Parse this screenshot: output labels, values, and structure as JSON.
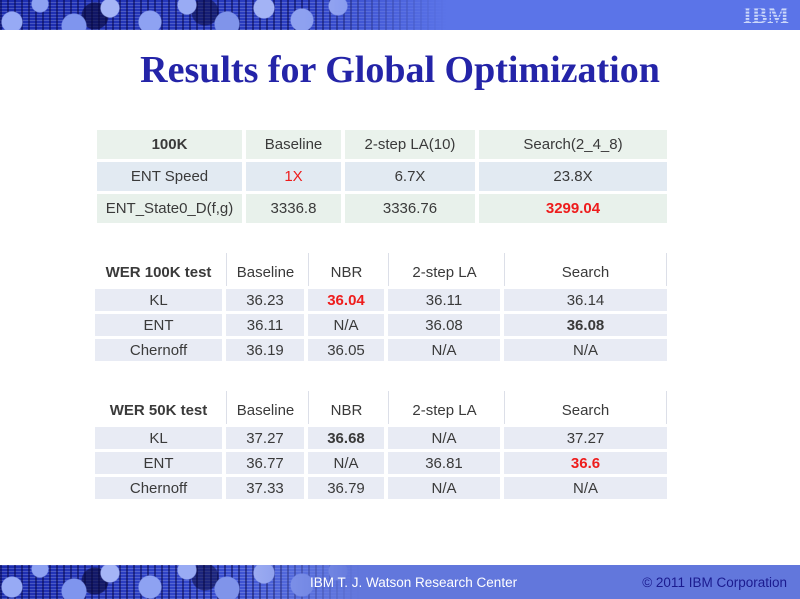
{
  "slide": {
    "title": "Results for Global Optimization",
    "logo_text": "IBM",
    "footer": {
      "center": "IBM T. J. Watson Research Center",
      "right": "© 2011 IBM Corporation"
    },
    "colors": {
      "title_color": "#2424A8",
      "accent_red": "#EE1C1C",
      "banner_blue": "#5B74E8",
      "banner_dark": "#1C2CAE",
      "footer_bar": "#6277DC",
      "footer_text": "#FFFFFF",
      "footer_right_text": "#1B1B8F",
      "t1_row_a": "#EAF2EC",
      "t1_row_b": "#E2EAF2",
      "t1_row_c": "#E8F1EB",
      "t23_row": "#E8EBF4",
      "cell_text": "#3A3A3A"
    }
  },
  "tables": [
    {
      "id": "t1",
      "name": "speed-table",
      "header": [
        {
          "text": "100K",
          "style": "bold"
        },
        {
          "text": "Baseline",
          "style": ""
        },
        {
          "text": "2-step LA(10)",
          "style": ""
        },
        {
          "text": "Search(2_4_8)",
          "style": ""
        }
      ],
      "rows": [
        [
          {
            "text": "ENT Speed",
            "style": ""
          },
          {
            "text": "1X",
            "style": "red"
          },
          {
            "text": "6.7X",
            "style": ""
          },
          {
            "text": "23.8X",
            "style": ""
          }
        ],
        [
          {
            "text": "ENT_State0_D(f,g)",
            "style": ""
          },
          {
            "text": "3336.8",
            "style": ""
          },
          {
            "text": "3336.76",
            "style": ""
          },
          {
            "text": "3299.04",
            "style": "red bold"
          }
        ]
      ]
    },
    {
      "id": "t2",
      "name": "wer-100k-table",
      "header": [
        {
          "text": "WER 100K test",
          "style": "bold"
        },
        {
          "text": "Baseline",
          "style": ""
        },
        {
          "text": "NBR",
          "style": ""
        },
        {
          "text": "2-step LA",
          "style": ""
        },
        {
          "text": "Search",
          "style": ""
        }
      ],
      "rows": [
        [
          {
            "text": "KL",
            "style": ""
          },
          {
            "text": "36.23",
            "style": ""
          },
          {
            "text": "36.04",
            "style": "red bold"
          },
          {
            "text": "36.11",
            "style": ""
          },
          {
            "text": "36.14",
            "style": ""
          }
        ],
        [
          {
            "text": "ENT",
            "style": ""
          },
          {
            "text": "36.11",
            "style": ""
          },
          {
            "text": "N/A",
            "style": ""
          },
          {
            "text": "36.08",
            "style": ""
          },
          {
            "text": "36.08",
            "style": "bold"
          }
        ],
        [
          {
            "text": "Chernoff",
            "style": ""
          },
          {
            "text": "36.19",
            "style": ""
          },
          {
            "text": "36.05",
            "style": ""
          },
          {
            "text": "N/A",
            "style": ""
          },
          {
            "text": "N/A",
            "style": ""
          }
        ]
      ]
    },
    {
      "id": "t3",
      "name": "wer-50k-table",
      "header": [
        {
          "text": "WER 50K test",
          "style": "bold"
        },
        {
          "text": "Baseline",
          "style": ""
        },
        {
          "text": "NBR",
          "style": ""
        },
        {
          "text": "2-step LA",
          "style": ""
        },
        {
          "text": "Search",
          "style": ""
        }
      ],
      "rows": [
        [
          {
            "text": "KL",
            "style": ""
          },
          {
            "text": "37.27",
            "style": ""
          },
          {
            "text": "36.68",
            "style": "bold"
          },
          {
            "text": "N/A",
            "style": ""
          },
          {
            "text": "37.27",
            "style": ""
          }
        ],
        [
          {
            "text": "ENT",
            "style": ""
          },
          {
            "text": "36.77",
            "style": ""
          },
          {
            "text": "N/A",
            "style": ""
          },
          {
            "text": "36.81",
            "style": ""
          },
          {
            "text": "36.6",
            "style": "red bold"
          }
        ],
        [
          {
            "text": "Chernoff",
            "style": ""
          },
          {
            "text": "37.33",
            "style": ""
          },
          {
            "text": "36.79",
            "style": ""
          },
          {
            "text": "N/A",
            "style": ""
          },
          {
            "text": "N/A",
            "style": ""
          }
        ]
      ]
    }
  ]
}
